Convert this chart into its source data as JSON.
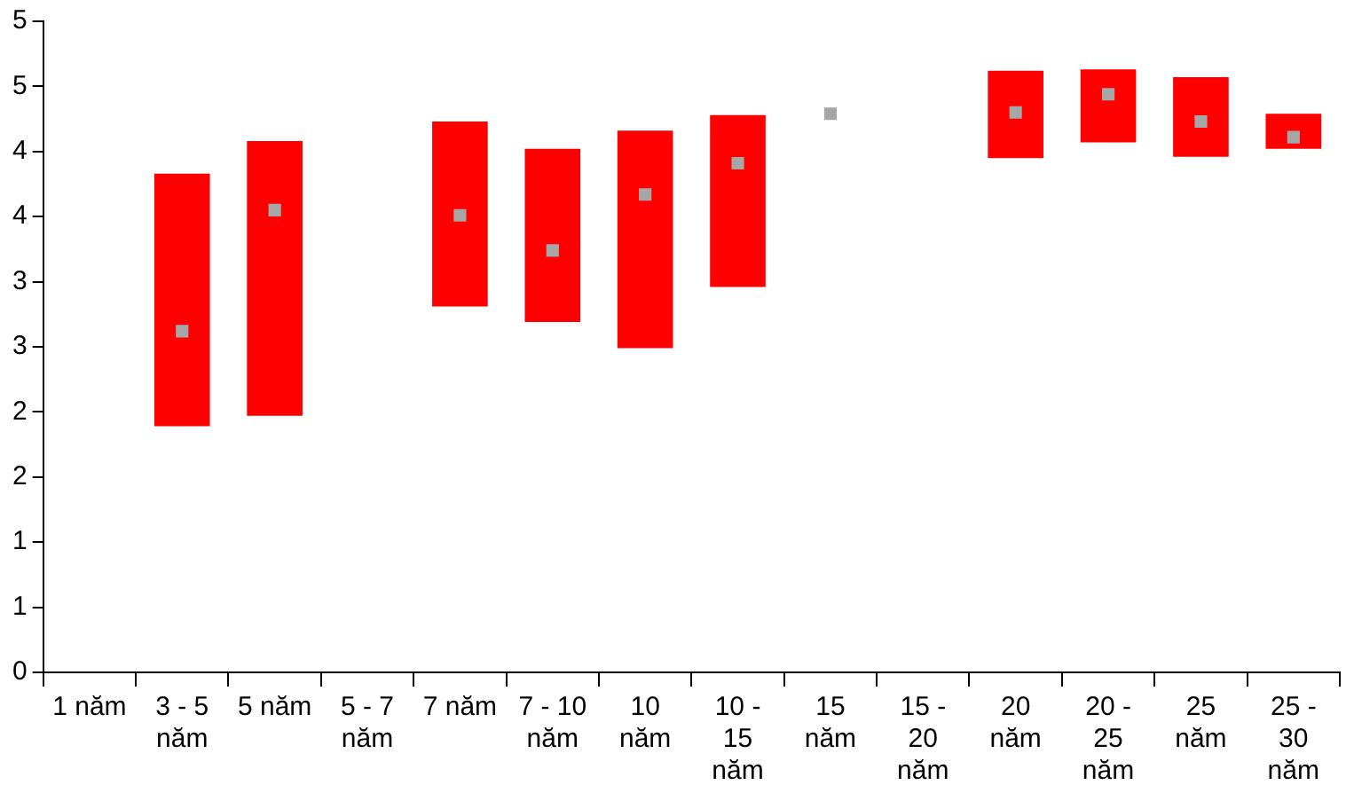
{
  "chart_data": {
    "type": "bar",
    "categories": [
      "1 năm",
      "3 - 5 năm",
      "5 năm",
      "5 - 7 năm",
      "7 năm",
      "7 - 10 năm",
      "10 năm",
      "10 - 15 năm",
      "15 năm",
      "15 - 20 năm",
      "20 năm",
      "20 - 25 năm",
      "25 năm",
      "25 - 30 năm"
    ],
    "series": [
      {
        "color": "#ff0000",
        "base": [
          null,
          1.89,
          1.97,
          null,
          2.81,
          2.69,
          2.49,
          2.96,
          null,
          null,
          3.95,
          4.07,
          3.96,
          4.02
        ],
        "values": [
          null,
          1.94,
          2.11,
          null,
          1.42,
          1.33,
          1.67,
          1.32,
          null,
          null,
          0.67,
          0.56,
          0.61,
          0.27
        ]
      },
      {
        "type": "scatter",
        "color": "#a6a6a6",
        "x": [
          "3 - 5 năm",
          "5 năm",
          "7 năm",
          "7 - 10 năm",
          "10 năm",
          "10 - 15 năm",
          "15 năm",
          "20 năm",
          "20 - 25 năm",
          "25 năm",
          "25 - 30 năm"
        ],
        "values": [
          2.62,
          3.55,
          3.51,
          3.24,
          3.67,
          3.91,
          4.29,
          4.3,
          4.44,
          4.23,
          4.11
        ]
      }
    ],
    "ylim": [
      0,
      5
    ],
    "yticks": [
      0,
      {
        "value": 0.5,
        "label": "1"
      },
      1,
      {
        "value": 1.5,
        "label": "2"
      },
      2,
      {
        "value": 2.5,
        "label": "3"
      },
      3,
      {
        "value": 3.5,
        "label": "4"
      },
      4,
      {
        "value": 4.5,
        "label": "5"
      },
      5
    ],
    "grid": false,
    "legend": false,
    "marker": "square"
  }
}
